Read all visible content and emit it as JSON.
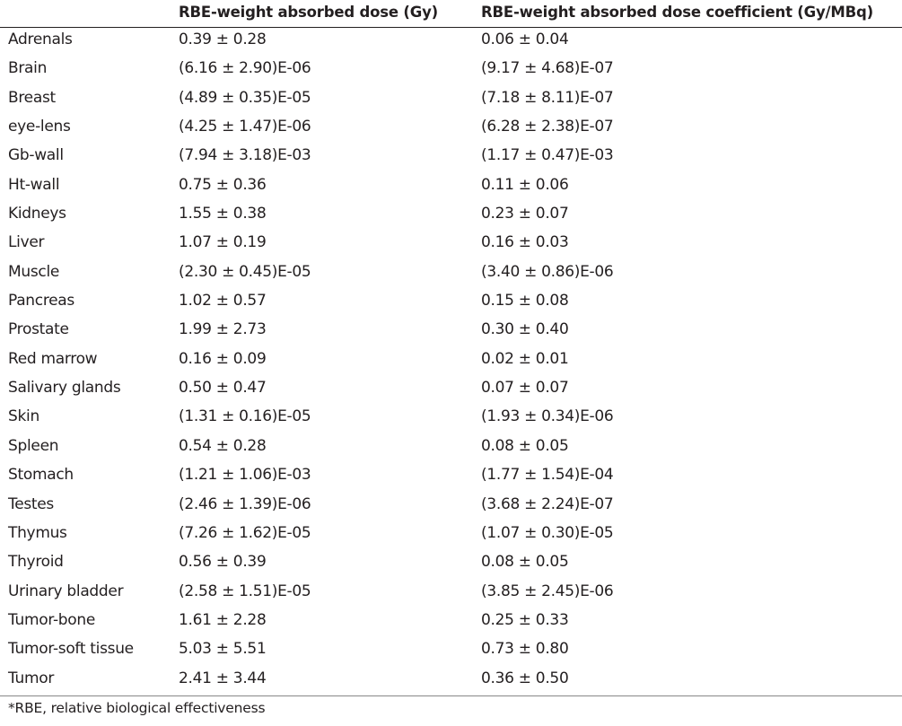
{
  "table": {
    "headers": [
      "",
      "RBE-weight absorbed dose (Gy)",
      "RBE-weight absorbed dose coefficient (Gy/MBq)"
    ],
    "rows": [
      [
        "Adrenals",
        "0.39 ± 0.28",
        "0.06 ± 0.04"
      ],
      [
        "Brain",
        "(6.16 ± 2.90)E-06",
        "(9.17 ± 4.68)E-07"
      ],
      [
        "Breast",
        "(4.89 ± 0.35)E-05",
        "(7.18 ± 8.11)E-07"
      ],
      [
        "eye-lens",
        "(4.25 ± 1.47)E-06",
        "(6.28 ± 2.38)E-07"
      ],
      [
        "Gb-wall",
        "(7.94 ± 3.18)E-03",
        "(1.17 ± 0.47)E-03"
      ],
      [
        "Ht-wall",
        "0.75 ± 0.36",
        "0.11 ± 0.06"
      ],
      [
        "Kidneys",
        "1.55 ± 0.38",
        "0.23 ± 0.07"
      ],
      [
        "Liver",
        "1.07 ± 0.19",
        "0.16 ± 0.03"
      ],
      [
        "Muscle",
        "(2.30 ± 0.45)E-05",
        "(3.40 ± 0.86)E-06"
      ],
      [
        "Pancreas",
        "1.02 ± 0.57",
        "0.15 ± 0.08"
      ],
      [
        "Prostate",
        "1.99 ± 2.73",
        "0.30 ± 0.40"
      ],
      [
        "Red marrow",
        "0.16 ± 0.09",
        "0.02 ± 0.01"
      ],
      [
        "Salivary glands",
        "0.50 ± 0.47",
        "0.07 ± 0.07"
      ],
      [
        "Skin",
        "(1.31 ± 0.16)E-05",
        "(1.93 ± 0.34)E-06"
      ],
      [
        "Spleen",
        "0.54 ± 0.28",
        "0.08 ± 0.05"
      ],
      [
        "Stomach",
        "(1.21 ± 1.06)E-03",
        "(1.77 ± 1.54)E-04"
      ],
      [
        "Testes",
        "(2.46 ± 1.39)E-06",
        "(3.68 ± 2.24)E-07"
      ],
      [
        "Thymus",
        "(7.26 ± 1.62)E-05",
        "(1.07 ± 0.30)E-05"
      ],
      [
        "Thyroid",
        "0.56 ± 0.39",
        "0.08 ± 0.05"
      ],
      [
        "Urinary bladder",
        "(2.58 ± 1.51)E-05",
        "(3.85 ± 2.45)E-06"
      ],
      [
        "Tumor-bone",
        "1.61 ± 2.28",
        "0.25 ± 0.33"
      ],
      [
        "Tumor-soft tissue",
        "5.03 ± 5.51",
        "0.73 ± 0.80"
      ],
      [
        "Tumor",
        "2.41 ± 3.44",
        "0.36 ± 0.50"
      ]
    ]
  },
  "footnote": "*RBE, relative biological effectiveness"
}
